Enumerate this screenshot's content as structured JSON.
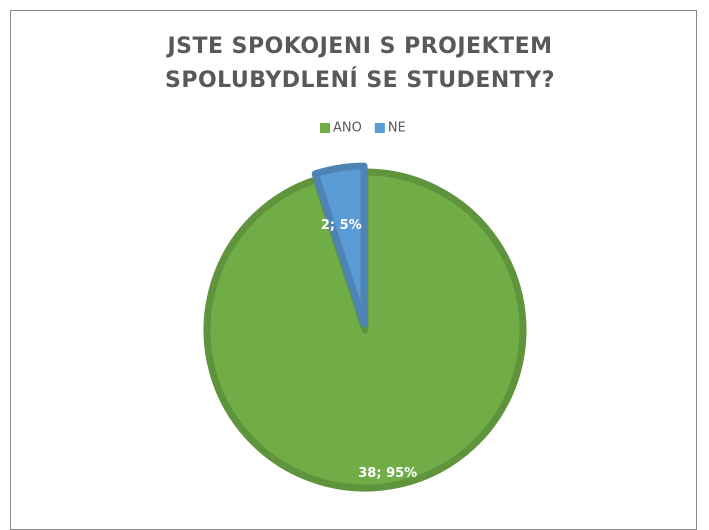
{
  "chart_data": {
    "type": "pie",
    "title": "JSTE SPOKOJENI S PROJEKTEM SPOLUBYDLENÍ SE STUDENTY?",
    "categories": [
      "ANO",
      "NE"
    ],
    "values": [
      38,
      2
    ],
    "value_labels": [
      "38; 95%",
      "2; 5%"
    ],
    "colors": [
      "#70ad47",
      "#5b9bd5"
    ],
    "legend": "top"
  }
}
